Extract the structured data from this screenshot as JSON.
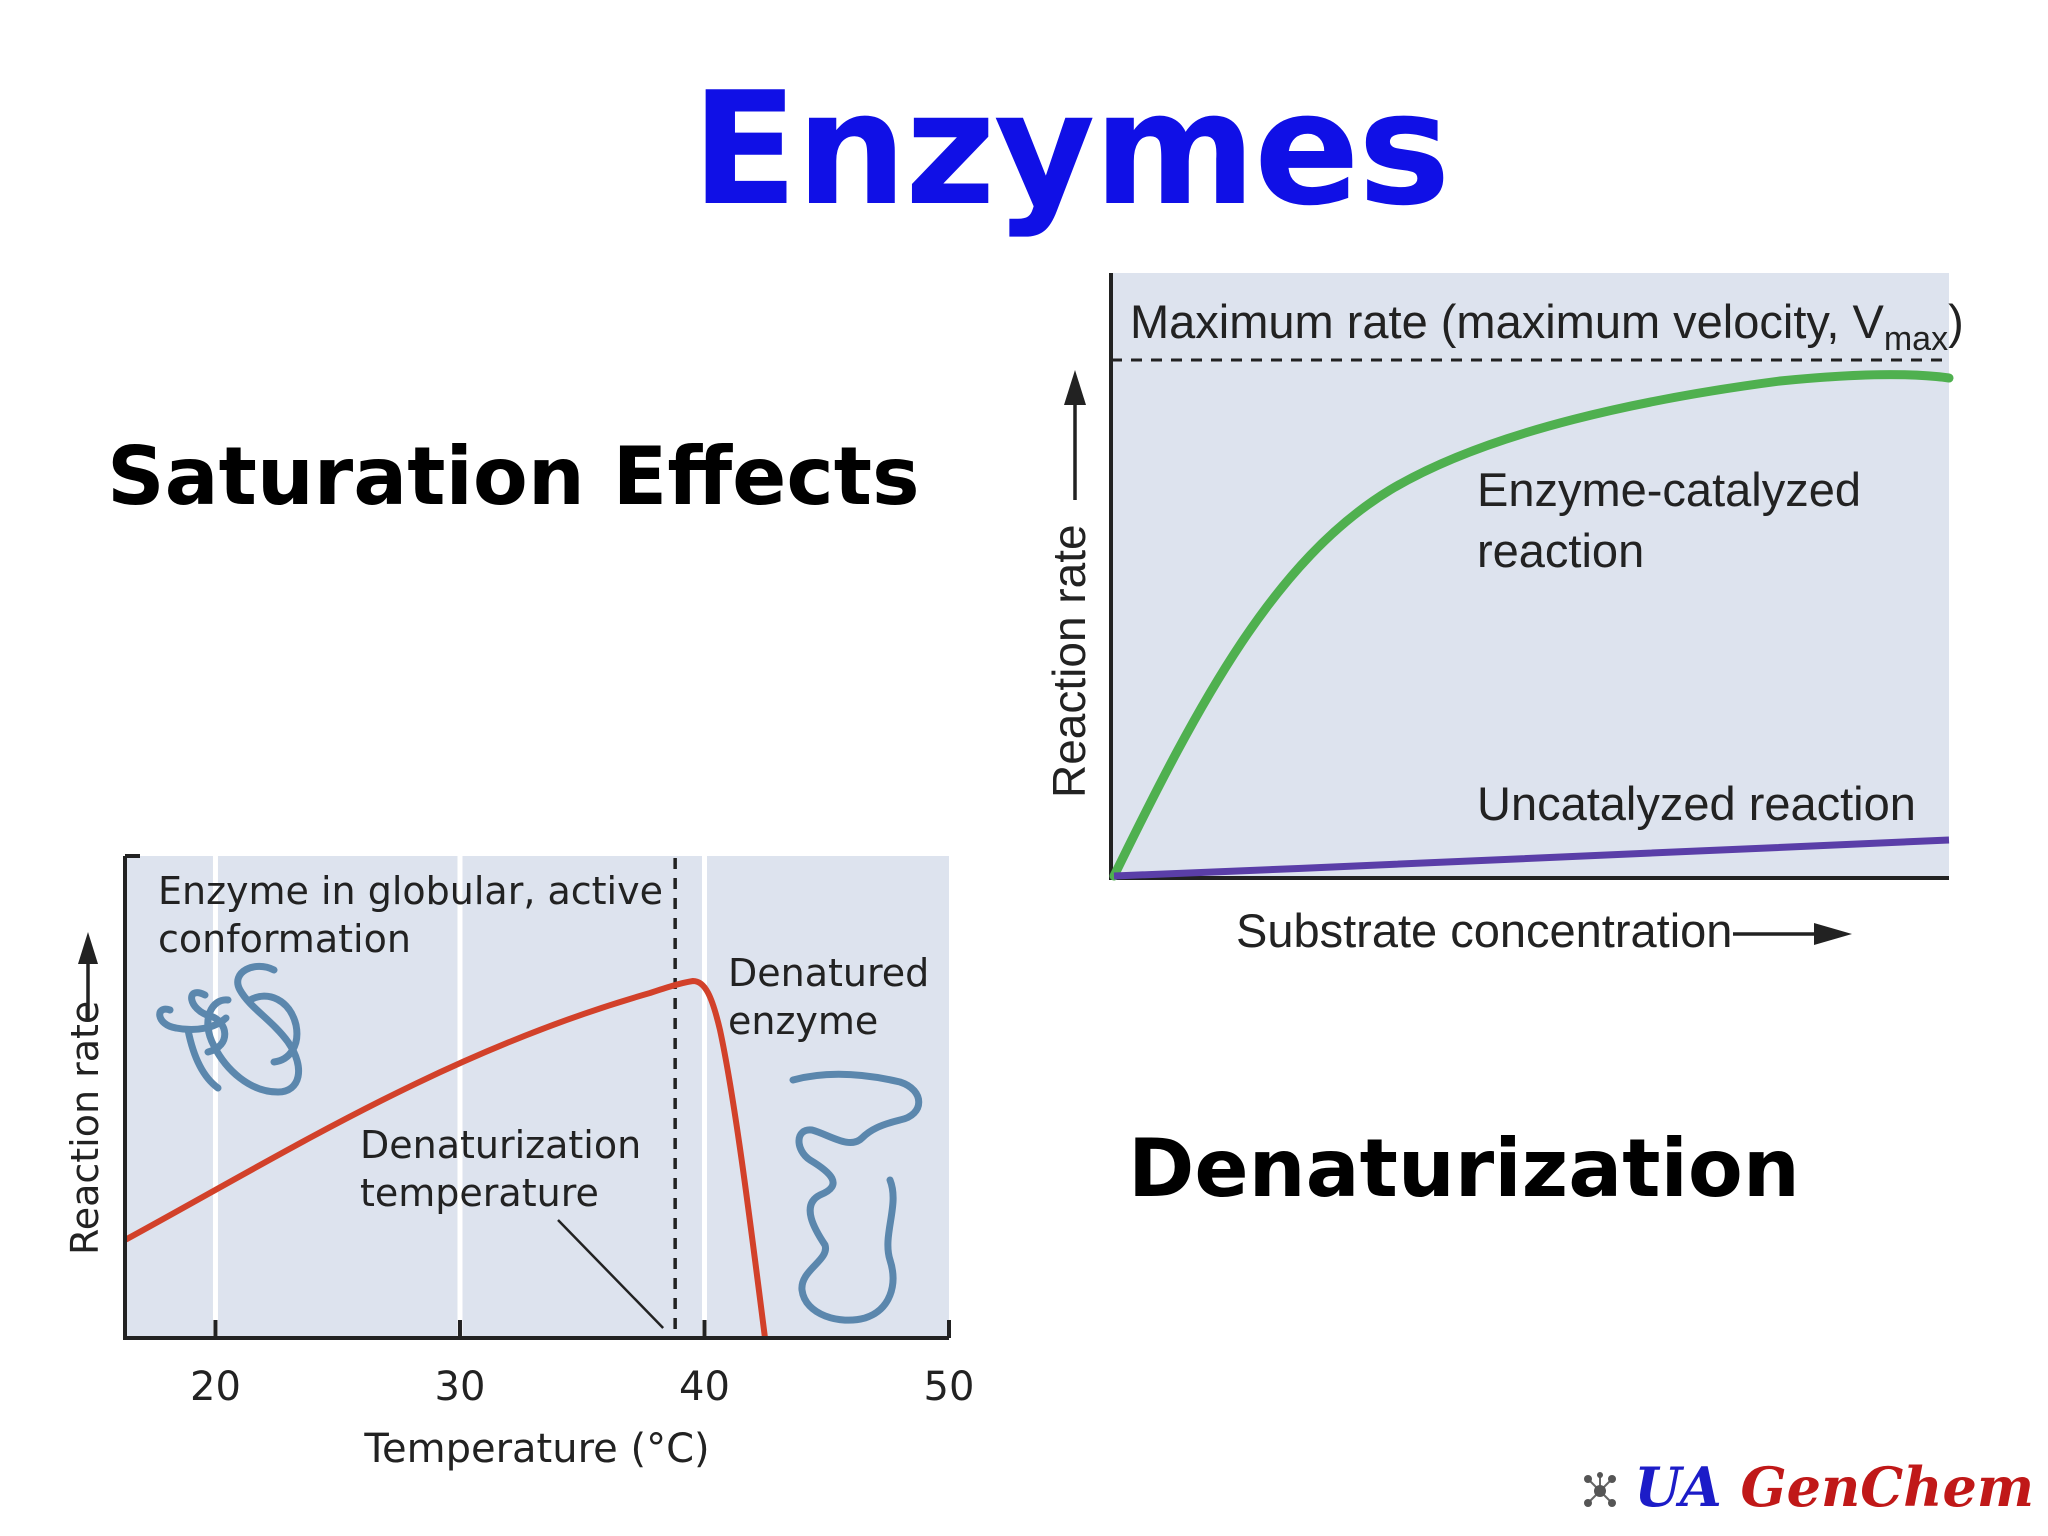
{
  "title": "Enzymes",
  "headings": {
    "saturation": "Saturation Effects",
    "denaturization": "Denaturization"
  },
  "saturation_chart": {
    "chart_data": {
      "type": "line",
      "xlabel": "Substrate concentration",
      "ylabel": "Reaction rate",
      "max_rate_label": "Maximum rate (maximum velocity, V",
      "max_rate_sub": "max",
      "max_rate_close": ")",
      "catalyzed_label_1": "Enzyme-catalyzed",
      "catalyzed_label_2": "reaction",
      "uncatalyzed_label": "Uncatalyzed reaction",
      "colors": {
        "catalyzed": "#4fb04f",
        "uncatalyzed": "#5a3ea8",
        "background": "#dde3ee"
      }
    }
  },
  "temperature_chart": {
    "chart_data": {
      "type": "line",
      "xlabel": "Temperature (°C)",
      "ylabel": "Reaction rate",
      "x_ticks": [
        "20",
        "30",
        "40",
        "50"
      ],
      "xlim": [
        16.3,
        50
      ],
      "denaturization_temp": 38.8,
      "active_label_1": "Enzyme in globular, active",
      "active_label_2": "conformation",
      "denatured_label_1": "Denatured",
      "denatured_label_2": "enzyme",
      "denat_temp_label_1": "Denaturization",
      "denat_temp_label_2": "temperature",
      "colors": {
        "curve": "#d2412a",
        "background": "#dde3ee",
        "protein": "#5b87ad"
      }
    }
  },
  "brand": {
    "ua": "UA",
    "genchem": "GenChem",
    "logo_icon": "molecule-icon"
  }
}
